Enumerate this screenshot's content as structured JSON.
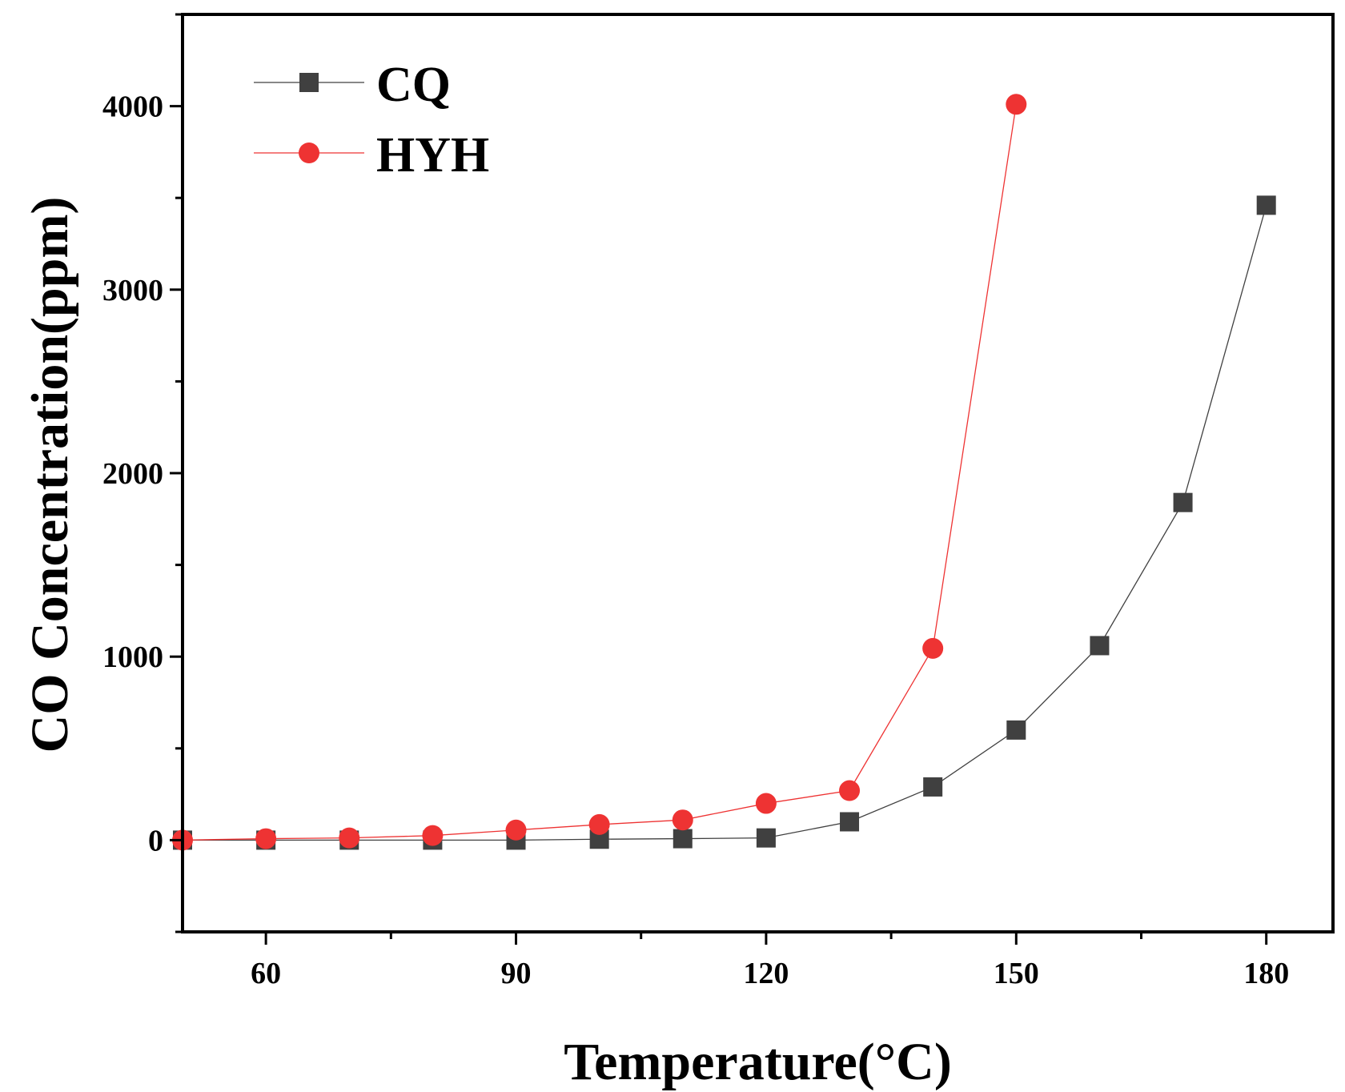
{
  "chart_data": {
    "type": "line",
    "title": "",
    "xlabel": "Temperature(°C)",
    "ylabel": "CO Concentration(ppm)",
    "xlim": [
      50,
      188
    ],
    "ylim": [
      -500,
      4500
    ],
    "xticks": [
      60,
      90,
      120,
      150,
      180
    ],
    "yticks": [
      0,
      1000,
      2000,
      3000,
      4000
    ],
    "x_tick_labels": [
      "60",
      "90",
      "120",
      "150",
      "180"
    ],
    "y_tick_labels": [
      "0",
      "1000",
      "2000",
      "3000",
      "4000"
    ],
    "grid": false,
    "legend_position": "top-left",
    "series": [
      {
        "name": "CQ",
        "color": "#404040",
        "marker": "square",
        "x": [
          50,
          60,
          70,
          80,
          90,
          100,
          110,
          120,
          130,
          140,
          150,
          160,
          170,
          180
        ],
        "values": [
          0,
          0,
          0,
          0,
          0,
          5,
          8,
          12,
          100,
          290,
          600,
          1060,
          1840,
          3460
        ]
      },
      {
        "name": "HYH",
        "color": "#ee3333",
        "marker": "circle",
        "x": [
          50,
          60,
          70,
          80,
          90,
          100,
          110,
          120,
          130,
          140,
          150
        ],
        "values": [
          0,
          8,
          12,
          25,
          55,
          85,
          110,
          200,
          270,
          1045,
          4010
        ]
      }
    ]
  }
}
